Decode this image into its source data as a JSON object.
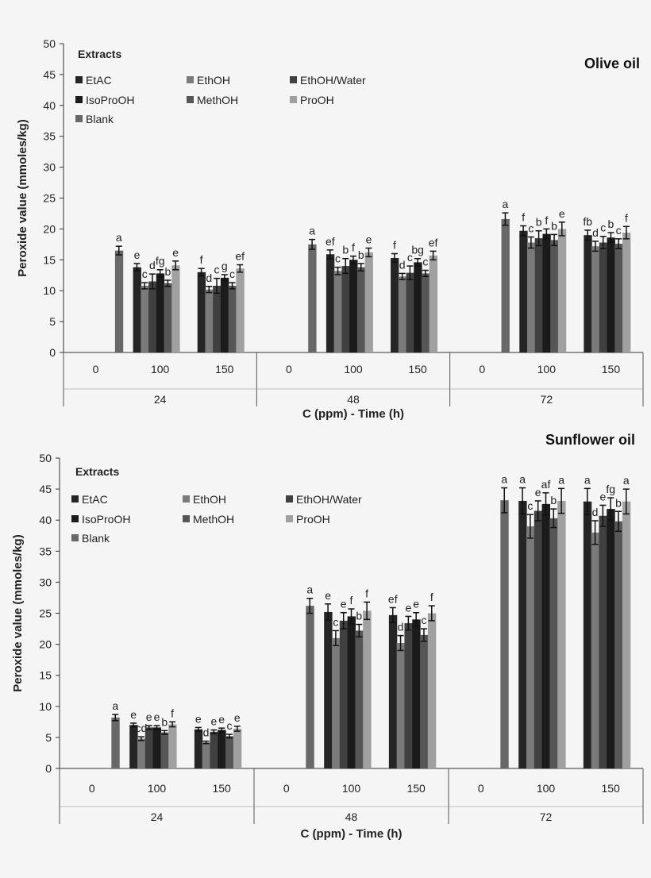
{
  "colors": {
    "EtAC": "#252525",
    "EthOH": "#7a7a7a",
    "EthOH/Water": "#404040",
    "IsoProOH": "#1b1b1b",
    "MethOH": "#565656",
    "ProOH": "#a0a0a0",
    "Blank": "#686868"
  },
  "chart_data": [
    {
      "type": "bar",
      "title": "Olive oil",
      "ylabel": "Peroxide value (mmoles/kg)",
      "xlabel": "C (ppm) - Time (h)",
      "legend_title": "Extracts",
      "legend_position": "top-left",
      "ylim": [
        0,
        50
      ],
      "yticks": [
        0,
        5,
        10,
        15,
        20,
        25,
        30,
        35,
        40,
        45,
        50
      ],
      "grid": false,
      "groups": [
        "24",
        "48",
        "72"
      ],
      "subcategories": [
        "0",
        "100",
        "150"
      ],
      "series": [
        {
          "name": "EtAC",
          "values": [
            [
              null,
              13.8,
              13.0
            ],
            [
              null,
              15.9,
              15.3
            ],
            [
              null,
              19.7,
              19.0
            ]
          ],
          "errors": [
            [
              null,
              0.6,
              0.6
            ],
            [
              null,
              0.7,
              0.7
            ],
            [
              null,
              0.8,
              0.8
            ]
          ],
          "letters": [
            [
              null,
              "e",
              "f"
            ],
            [
              null,
              "ef",
              "f"
            ],
            [
              null,
              "f",
              "fb"
            ]
          ]
        },
        {
          "name": "EthOH",
          "values": [
            [
              null,
              10.8,
              10.2
            ],
            [
              null,
              13.2,
              12.3
            ],
            [
              null,
              17.8,
              17.2
            ]
          ],
          "errors": [
            [
              null,
              0.5,
              0.5
            ],
            [
              null,
              0.6,
              0.5
            ],
            [
              null,
              0.9,
              0.8
            ]
          ],
          "letters": [
            [
              null,
              "c",
              "d"
            ],
            [
              null,
              "c",
              "d"
            ],
            [
              null,
              "c",
              "d"
            ]
          ]
        },
        {
          "name": "EthOH/Water",
          "values": [
            [
              null,
              11.5,
              10.8
            ],
            [
              null,
              14.0,
              12.9
            ],
            [
              null,
              18.5,
              17.8
            ]
          ],
          "errors": [
            [
              null,
              1.2,
              1.2
            ],
            [
              null,
              1.2,
              1.1
            ],
            [
              null,
              1.2,
              1.0
            ]
          ],
          "letters": [
            [
              null,
              "d",
              "c"
            ],
            [
              null,
              "b",
              "c"
            ],
            [
              null,
              "b",
              "c"
            ]
          ]
        },
        {
          "name": "IsoProOH",
          "values": [
            [
              null,
              12.8,
              12.1
            ],
            [
              null,
              15.0,
              14.6
            ],
            [
              null,
              19.2,
              18.6
            ]
          ],
          "errors": [
            [
              null,
              0.6,
              0.5
            ],
            [
              null,
              0.6,
              0.6
            ],
            [
              null,
              0.8,
              0.8
            ]
          ],
          "letters": [
            [
              null,
              "fg",
              "g"
            ],
            [
              null,
              "f",
              "bg"
            ],
            [
              null,
              "f",
              "b"
            ]
          ]
        },
        {
          "name": "MethOH",
          "values": [
            [
              null,
              11.2,
              10.8
            ],
            [
              null,
              13.8,
              12.8
            ],
            [
              null,
              18.2,
              17.6
            ]
          ],
          "errors": [
            [
              null,
              0.5,
              0.5
            ],
            [
              null,
              0.6,
              0.5
            ],
            [
              null,
              0.9,
              0.8
            ]
          ],
          "letters": [
            [
              null,
              "b",
              "c"
            ],
            [
              null,
              "b",
              "c"
            ],
            [
              null,
              "b",
              "c"
            ]
          ]
        },
        {
          "name": "ProOH",
          "values": [
            [
              null,
              14.1,
              13.6
            ],
            [
              null,
              16.2,
              15.7
            ],
            [
              null,
              20.0,
              19.4
            ]
          ],
          "errors": [
            [
              null,
              0.7,
              0.6
            ],
            [
              null,
              0.7,
              0.7
            ],
            [
              null,
              1.1,
              1.0
            ]
          ],
          "letters": [
            [
              null,
              "e",
              "ef"
            ],
            [
              null,
              "e",
              "ef"
            ],
            [
              null,
              "e",
              "f"
            ]
          ]
        },
        {
          "name": "Blank",
          "values": [
            [
              16.5,
              null,
              null
            ],
            [
              17.5,
              null,
              null
            ],
            [
              21.6,
              null,
              null
            ]
          ],
          "errors": [
            [
              0.7,
              null,
              null
            ],
            [
              0.8,
              null,
              null
            ],
            [
              1.0,
              null,
              null
            ]
          ],
          "letters": [
            [
              "a",
              null,
              null
            ],
            [
              "a",
              null,
              null
            ],
            [
              "a",
              null,
              null
            ]
          ]
        }
      ]
    },
    {
      "type": "bar",
      "title": "Sunflower oil",
      "ylabel": "Peroxide value (mmoles/kg)",
      "xlabel": "C (ppm) - Time (h)",
      "legend_title": "Extracts",
      "legend_position": "top-left",
      "ylim": [
        0,
        50
      ],
      "yticks": [
        0,
        5,
        10,
        15,
        20,
        25,
        30,
        35,
        40,
        45,
        50
      ],
      "grid": false,
      "groups": [
        "24",
        "48",
        "72"
      ],
      "subcategories": [
        "0",
        "100",
        "150"
      ],
      "series": [
        {
          "name": "EtAC",
          "values": [
            [
              null,
              7.0,
              6.3
            ],
            [
              null,
              25.2,
              24.7
            ],
            [
              null,
              43.1,
              43.0
            ]
          ],
          "errors": [
            [
              null,
              0.3,
              0.3
            ],
            [
              null,
              1.3,
              1.2
            ],
            [
              null,
              2.1,
              2.1
            ]
          ],
          "letters": [
            [
              null,
              "e",
              "e"
            ],
            [
              null,
              "e",
              "ef"
            ],
            [
              null,
              "a",
              "a"
            ]
          ]
        },
        {
          "name": "EthOH",
          "values": [
            [
              null,
              4.8,
              4.2
            ],
            [
              null,
              21.0,
              20.2
            ],
            [
              null,
              39.0,
              38.0
            ]
          ],
          "errors": [
            [
              null,
              0.3,
              0.2
            ],
            [
              null,
              1.2,
              1.2
            ],
            [
              null,
              1.9,
              1.9
            ]
          ],
          "letters": [
            [
              null,
              "cd",
              "d"
            ],
            [
              null,
              "c",
              "d"
            ],
            [
              null,
              "c",
              "d"
            ]
          ]
        },
        {
          "name": "EthOH/Water",
          "values": [
            [
              null,
              6.6,
              5.9
            ],
            [
              null,
              23.8,
              23.4
            ],
            [
              null,
              41.5,
              40.7
            ]
          ],
          "errors": [
            [
              null,
              0.3,
              0.3
            ],
            [
              null,
              1.3,
              1.1
            ],
            [
              null,
              1.6,
              1.7
            ]
          ],
          "letters": [
            [
              null,
              "e",
              "e"
            ],
            [
              null,
              "e",
              "e"
            ],
            [
              null,
              "e",
              "e"
            ]
          ]
        },
        {
          "name": "IsoProOH",
          "values": [
            [
              null,
              6.6,
              6.2
            ],
            [
              null,
              24.5,
              24.0
            ],
            [
              null,
              42.6,
              41.8
            ]
          ],
          "errors": [
            [
              null,
              0.3,
              0.3
            ],
            [
              null,
              1.2,
              1.1
            ],
            [
              null,
              1.8,
              1.8
            ]
          ],
          "letters": [
            [
              null,
              "e",
              "e"
            ],
            [
              null,
              "f",
              "e"
            ],
            [
              null,
              "af",
              "fg"
            ]
          ]
        },
        {
          "name": "MethOH",
          "values": [
            [
              null,
              5.8,
              5.2
            ],
            [
              null,
              22.2,
              21.5
            ],
            [
              null,
              40.3,
              39.8
            ]
          ],
          "errors": [
            [
              null,
              0.3,
              0.3
            ],
            [
              null,
              1.0,
              1.0
            ],
            [
              null,
              1.5,
              1.6
            ]
          ],
          "letters": [
            [
              null,
              "b",
              "c"
            ],
            [
              null,
              "b",
              "c"
            ],
            [
              null,
              "b",
              "b"
            ]
          ]
        },
        {
          "name": "ProOH",
          "values": [
            [
              null,
              7.1,
              6.4
            ],
            [
              null,
              25.4,
              25.0
            ],
            [
              null,
              43.1,
              43.0
            ]
          ],
          "errors": [
            [
              null,
              0.4,
              0.4
            ],
            [
              null,
              1.4,
              1.2
            ],
            [
              null,
              2.0,
              2.0
            ]
          ],
          "letters": [
            [
              null,
              "f",
              "e"
            ],
            [
              null,
              "f",
              "f"
            ],
            [
              null,
              "a",
              "a"
            ]
          ]
        },
        {
          "name": "Blank",
          "values": [
            [
              8.2,
              null,
              null
            ],
            [
              26.2,
              null,
              null
            ],
            [
              43.2,
              null,
              null
            ]
          ],
          "errors": [
            [
              0.5,
              null,
              null
            ],
            [
              1.2,
              null,
              null
            ],
            [
              2.0,
              null,
              null
            ]
          ],
          "letters": [
            [
              "a",
              null,
              null
            ],
            [
              "a",
              null,
              null
            ],
            [
              "a",
              null,
              null
            ]
          ]
        }
      ]
    }
  ]
}
